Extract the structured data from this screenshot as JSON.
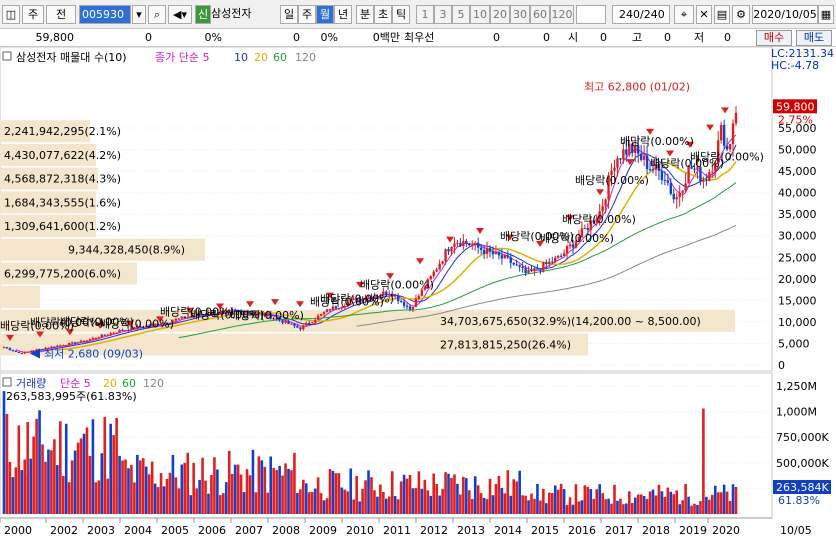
{
  "toolbar": {
    "tab1": "주",
    "tab2": "전",
    "code": "005930",
    "stock_name": "삼성전자",
    "badge": "신",
    "periods": [
      "일",
      "주",
      "월",
      "년",
      "분",
      "초",
      "틱"
    ],
    "selected_period": "월",
    "intervals": [
      "1",
      "3",
      "5",
      "10",
      "20",
      "30",
      "60",
      "120"
    ],
    "count": "240",
    "count_total": "/240",
    "date": "2020/10/05"
  },
  "info": {
    "price": "59,800",
    "v1": "0",
    "v1pct": "0%",
    "v2": "0",
    "v2pct": "0%",
    "amount": "0백만",
    "label": "최우선",
    "v3": "0",
    "v4": "0",
    "o_label": "시",
    "o": "0",
    "h_label": "고",
    "h": "0",
    "l_label": "저",
    "l": "0",
    "buy": "매수",
    "sell": "매도"
  },
  "legend": {
    "name": "삼성전자 매물대 수(10)",
    "ma_title": "종가 단순",
    "ma": [
      "5",
      "10",
      "20",
      "60",
      "120"
    ],
    "ma_colors": [
      "#d020d0",
      "#2030d0",
      "#e0b000",
      "#20a040",
      "#888888"
    ]
  },
  "vol_legend": {
    "title": "거래량",
    "ma_title": "단순",
    "ma": [
      "5",
      "20",
      "60",
      "120"
    ],
    "info": "263,583,995주(61.83%)"
  },
  "price_axis": {
    "lc": "LC:2131.34",
    "hc": "HC:-4.78",
    "price_tag": "59,800",
    "pct": "2.75%",
    "ticks": [
      "55,000",
      "50,000",
      "45,000",
      "40,000",
      "35,000",
      "30,000",
      "25,000",
      "20,000",
      "15,000",
      "10,000",
      "5,000",
      "0"
    ]
  },
  "vol_axis": {
    "ticks": [
      "1,250M",
      "1,000M",
      "750,000K",
      "500,000K",
      "250,000K"
    ],
    "tag": "263,584K",
    "pct": "61.83%"
  },
  "x_axis": {
    "years": [
      "2000",
      "2002",
      "2003",
      "2004",
      "2005",
      "2006",
      "2007",
      "2008",
      "2009",
      "2010",
      "2011",
      "2012",
      "2013",
      "2014",
      "2015",
      "2016",
      "2017",
      "2018",
      "2019",
      "2020"
    ],
    "end_label": "10/05"
  },
  "volume_profile": [
    {
      "label": "2,241,942,295(2.1%)",
      "price": 54250,
      "width": 90
    },
    {
      "label": "4,430,077,622(4.2%)",
      "price": 48750,
      "width": 96
    },
    {
      "label": "4,568,872,318(4.3%)",
      "price": 43250,
      "width": 98
    },
    {
      "label": "1,684,343,555(1.6%)",
      "price": 37750,
      "width": 96
    },
    {
      "label": "1,309,641,600(1.2%)",
      "price": 32250,
      "width": 96
    },
    {
      "label": "9,344,328,450(8.9%)",
      "price": 26750,
      "width": 205
    },
    {
      "label": "6,299,775,200(6.0%)",
      "price": 21250,
      "width": 137
    },
    {
      "label": "",
      "price": 15750,
      "width": 40
    },
    {
      "label": "34,703,675,650(32.9%)(14,200.00 ~ 8,500.00)",
      "price": 10250,
      "width": 735
    },
    {
      "label": "27,813,815,250(26.4%)",
      "price": 4750,
      "width": 588
    }
  ],
  "annotations": {
    "max": "최고 62,800 (01/02)",
    "min": "최저 2,680 (09/03)",
    "dividend": "배당락(0.00%)",
    "dividend_short": "배당락(0.00%)"
  },
  "chart_data": {
    "type": "candlestick",
    "price_range": [
      0,
      60000
    ],
    "volume_range": [
      0,
      1350000000
    ],
    "max_price": 62800,
    "min_price": 2680,
    "last_price": 59800,
    "x_range": [
      "2000",
      "2020/10"
    ]
  }
}
